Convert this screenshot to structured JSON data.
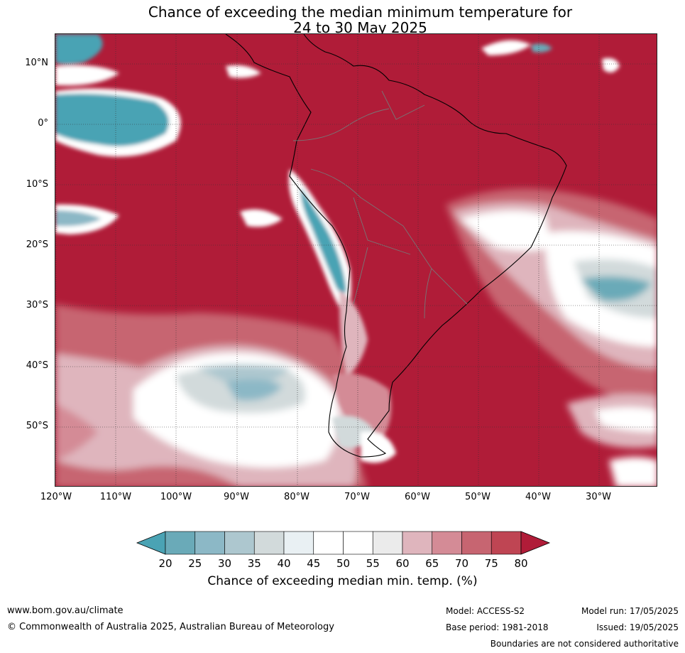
{
  "title": {
    "line1": "Chance of exceeding the median minimum temperature for",
    "line2": "24 to 30 May 2025"
  },
  "map": {
    "lat_labels": [
      "10°N",
      "0°",
      "10°S",
      "20°S",
      "30°S",
      "40°S",
      "50°S"
    ],
    "lon_labels": [
      "120°W",
      "110°W",
      "100°W",
      "90°W",
      "80°W",
      "70°W",
      "60°W",
      "50°W",
      "40°W",
      "30°W"
    ],
    "background_color": "#b01c38"
  },
  "colorbar": {
    "ticks": [
      "20",
      "25",
      "30",
      "35",
      "40",
      "45",
      "50",
      "55",
      "60",
      "65",
      "70",
      "75",
      "80"
    ],
    "colors": [
      "#4aa3b4",
      "#6aaab8",
      "#8cb8c6",
      "#adc7cf",
      "#d2dadb",
      "#e9f0f3",
      "#ffffff",
      "#ffffff",
      "#ebebeb",
      "#dfb5bd",
      "#d48b96",
      "#c76571",
      "#bf4553",
      "#b01c38"
    ],
    "label": "Chance of exceeding median min. temp. (%)"
  },
  "footer": {
    "website": "www.bom.gov.au/climate",
    "copyright": "© Commonwealth of Australia 2025, Australian Bureau of Meteorology",
    "model": "Model: ACCESS-S2",
    "base_period": "Base period: 1981-2018",
    "model_run": "Model run: 17/05/2025",
    "issued": "Issued: 19/05/2025",
    "disclaimer": "Boundaries are not considered authoritative"
  }
}
